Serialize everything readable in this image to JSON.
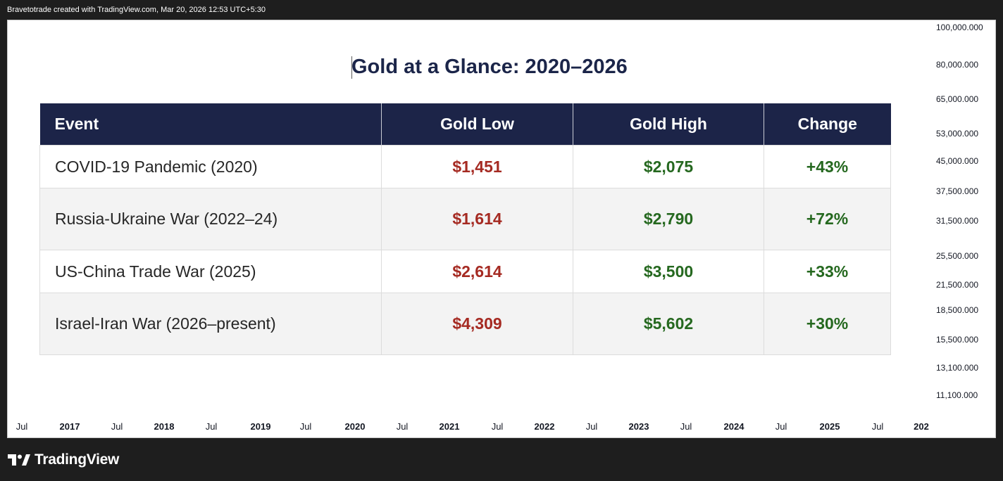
{
  "header": {
    "attribution": "Bravetotrade created with TradingView.com, Mar 20, 2026 12:53 UTC+5:30"
  },
  "title": "Gold at a Glance: 2020–2026",
  "table": {
    "columns": [
      "Event",
      "Gold Low",
      "Gold High",
      "Change"
    ],
    "rows": [
      {
        "event": "COVID-19 Pandemic  (2020)",
        "low": "$1,451",
        "high": "$2,075",
        "change": "+43%"
      },
      {
        "event": "Russia-Ukraine War  (2022–24)",
        "low": "$1,614",
        "high": "$2,790",
        "change": "+72%"
      },
      {
        "event": "US-China Trade War  (2025)",
        "low": "$2,614",
        "high": "$3,500",
        "change": "+33%"
      },
      {
        "event": "Israel-Iran War  (2026–present)",
        "low": "$4,309",
        "high": "$5,602",
        "change": "+30%"
      }
    ]
  },
  "price_axis": {
    "labels": [
      "100,000.000",
      "80,000.000",
      "65,000.000",
      "53,000.000",
      "45,000.000",
      "37,500.000",
      "31,500.000",
      "25,500.000",
      "21,500.000",
      "18,500.000",
      "15,500.000",
      "13,100.000",
      "11,100.000"
    ]
  },
  "time_axis": {
    "labels": [
      "Jul",
      "2017",
      "Jul",
      "2018",
      "Jul",
      "2019",
      "Jul",
      "2020",
      "Jul",
      "2021",
      "Jul",
      "2022",
      "Jul",
      "2023",
      "Jul",
      "2024",
      "Jul",
      "2025",
      "Jul",
      "202"
    ]
  },
  "footer": {
    "brand": "TradingView",
    "brand_icon": "tradingview-logo-icon"
  },
  "colors": {
    "header_bg": "#1c2448",
    "low": "#a52a22",
    "high": "#25681f",
    "title": "#1b2549",
    "frame": "#1e1e1e"
  }
}
